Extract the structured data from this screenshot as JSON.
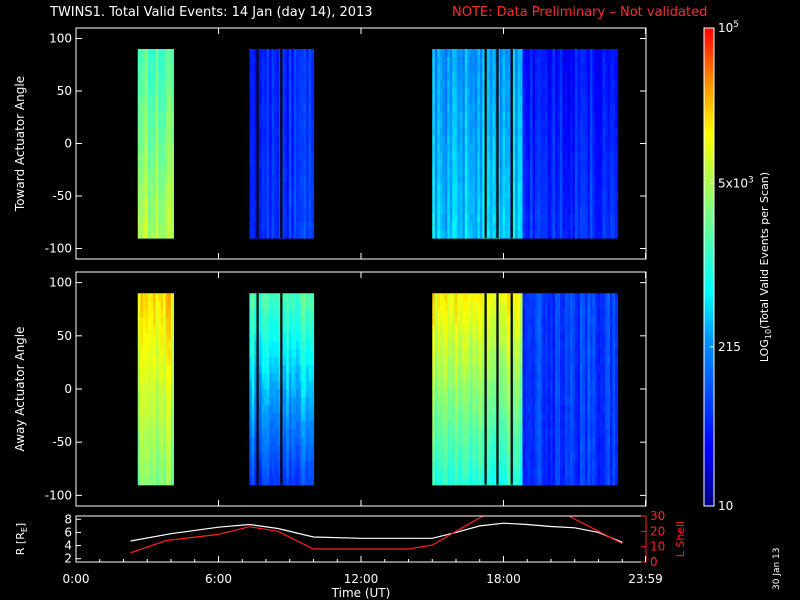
{
  "title": "TWINS1. Total Valid Events: 14 Jan (day  14), 2013",
  "note": "NOTE: Data Preliminary – Not validated",
  "stamp": "30 Jan 13",
  "colors": {
    "background": "#000000",
    "axes": "#ffffff",
    "note": "#ff2a2a",
    "r_line": "#ffffff",
    "lshell_line": "#ff2020"
  },
  "chart_data": [
    {
      "type": "heatmap",
      "panel": "top",
      "ylabel": "Toward Actuator Angle",
      "ylim": [
        -110,
        110
      ],
      "yticks": [
        -100,
        -50,
        0,
        50,
        100
      ],
      "xlim_hours": [
        0,
        24
      ],
      "data_angle_range": [
        -90,
        90
      ],
      "colorscale": "log10",
      "blocks": [
        {
          "start_hour": 2.6,
          "end_hour": 4.1,
          "level_top": 0.55,
          "level_bottom": 0.68
        },
        {
          "start_hour": 7.3,
          "end_hour": 10.0,
          "level_top": 0.18,
          "level_bottom": 0.2
        },
        {
          "start_hour": 15.0,
          "end_hour": 18.8,
          "level_top": 0.35,
          "level_bottom": 0.4
        },
        {
          "start_hour": 18.8,
          "end_hour": 22.8,
          "level_top": 0.15,
          "level_bottom": 0.2
        }
      ]
    },
    {
      "type": "heatmap",
      "panel": "middle",
      "ylabel": "Away Actuator Angle",
      "ylim": [
        -110,
        110
      ],
      "yticks": [
        -100,
        -50,
        0,
        50,
        100
      ],
      "xlim_hours": [
        0,
        24
      ],
      "data_angle_range": [
        -90,
        90
      ],
      "colorscale": "log10",
      "blocks": [
        {
          "start_hour": 2.6,
          "end_hour": 4.1,
          "level_top": 0.8,
          "level_bottom": 0.62
        },
        {
          "start_hour": 7.3,
          "end_hour": 10.0,
          "level_top": 0.55,
          "level_bottom": 0.22
        },
        {
          "start_hour": 15.0,
          "end_hour": 18.8,
          "level_top": 0.78,
          "level_bottom": 0.5
        },
        {
          "start_hour": 18.8,
          "end_hour": 22.8,
          "level_top": 0.22,
          "level_bottom": 0.2
        }
      ]
    },
    {
      "type": "line",
      "panel": "bottom",
      "xlabel": "Time (UT)",
      "xticks_hours": [
        0,
        6,
        12,
        18,
        23.98
      ],
      "xtick_labels": [
        "0:00",
        "6:00",
        "12:00",
        "18:00",
        "23:59"
      ],
      "ylabel_left": "R [R",
      "ylabel_left_sub": "E",
      "ylabel_left_close": "]",
      "ylim_left": [
        1.5,
        8.5
      ],
      "yticks_left": [
        2,
        4,
        6,
        8
      ],
      "ylabel_right": "L Shell",
      "ylim_right": [
        0,
        30
      ],
      "yticks_right": [
        0,
        10,
        20,
        30
      ],
      "series": [
        {
          "axis": "left",
          "x": [
            2.3,
            4,
            6,
            7.3,
            8.5,
            10,
            12,
            14,
            15,
            16,
            17,
            18,
            19,
            20,
            21,
            22,
            23
          ],
          "y": [
            4.7,
            5.8,
            6.8,
            7.2,
            6.6,
            5.3,
            5.1,
            5.1,
            5.1,
            6.0,
            7.0,
            7.4,
            7.2,
            6.9,
            6.7,
            6.0,
            4.5
          ]
        },
        {
          "axis": "right",
          "x": [
            2.3,
            3.8,
            6,
            7.3,
            8.5,
            10,
            12,
            14,
            15,
            16,
            17.2,
            17.8,
            20.3,
            21,
            22,
            23
          ],
          "y": [
            6,
            14,
            18,
            23,
            20,
            8.5,
            8.5,
            8.5,
            11,
            20,
            30.5,
            34,
            34,
            28,
            20,
            12
          ]
        }
      ]
    },
    {
      "type": "heatmap",
      "panel": "colorbar",
      "label": "LOG",
      "label_sub": "10",
      "label_rest": "(Total Valid Events per Scan)",
      "range": [
        10,
        100000
      ],
      "tick_values": [
        10,
        215,
        5000,
        100000
      ],
      "tick_labels": [
        {
          "base": "10",
          "exp": ""
        },
        {
          "base": "215",
          "exp": ""
        },
        {
          "base": "5x10",
          "exp": "3"
        },
        {
          "base": "10",
          "exp": "5"
        }
      ]
    }
  ]
}
